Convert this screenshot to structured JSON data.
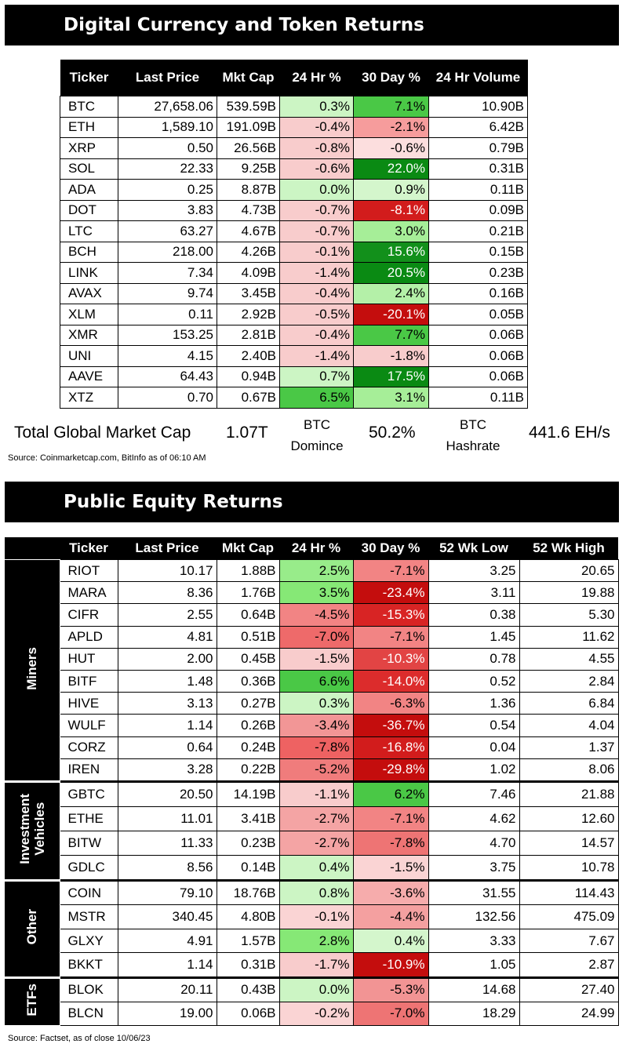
{
  "crypto": {
    "title": "Digital Currency and Token Returns",
    "headers": [
      "Ticker",
      "Last Price",
      "Mkt Cap",
      "24 Hr %",
      "30 Day %",
      "24 Hr Volume"
    ],
    "rows": [
      {
        "ticker": "BTC",
        "price": "27,658.06",
        "cap": "539.59B",
        "d24": "0.3%",
        "d24c": "#ccf5c4",
        "d30": "7.1%",
        "d30c": "#4ac846",
        "vol": "10.90B"
      },
      {
        "ticker": "ETH",
        "price": "1,589.10",
        "cap": "191.09B",
        "d24": "-0.4%",
        "d24c": "#f8cccc",
        "d30": "-2.1%",
        "d30c": "#f69c9c",
        "vol": "6.42B"
      },
      {
        "ticker": "XRP",
        "price": "0.50",
        "cap": "26.56B",
        "d24": "-0.8%",
        "d24c": "#f8cccc",
        "d30": "-0.6%",
        "d30c": "#fcdede",
        "vol": "0.79B"
      },
      {
        "ticker": "SOL",
        "price": "22.33",
        "cap": "9.25B",
        "d24": "-0.6%",
        "d24c": "#f8cccc",
        "d30": "22.0%",
        "d30c": "#0a8a13",
        "vol": "0.31B"
      },
      {
        "ticker": "ADA",
        "price": "0.25",
        "cap": "8.87B",
        "d24": "0.0%",
        "d24c": "#ccf5c4",
        "d30": "0.9%",
        "d30c": "#d4f6cc",
        "vol": "0.11B"
      },
      {
        "ticker": "DOT",
        "price": "3.83",
        "cap": "4.73B",
        "d24": "-0.7%",
        "d24c": "#f8cccc",
        "d30": "-8.1%",
        "d30c": "#d21c1c",
        "vol": "0.09B"
      },
      {
        "ticker": "LTC",
        "price": "63.27",
        "cap": "4.67B",
        "d24": "-0.7%",
        "d24c": "#f8cccc",
        "d30": "3.0%",
        "d30c": "#a6ee98",
        "vol": "0.21B"
      },
      {
        "ticker": "BCH",
        "price": "218.00",
        "cap": "4.26B",
        "d24": "-0.1%",
        "d24c": "#f8cccc",
        "d30": "15.6%",
        "d30c": "#12901b",
        "vol": "0.15B"
      },
      {
        "ticker": "LINK",
        "price": "7.34",
        "cap": "4.09B",
        "d24": "-1.4%",
        "d24c": "#f8cccc",
        "d30": "20.5%",
        "d30c": "#0a8a13",
        "vol": "0.23B"
      },
      {
        "ticker": "AVAX",
        "price": "9.74",
        "cap": "3.45B",
        "d24": "-0.4%",
        "d24c": "#f8cccc",
        "d30": "2.4%",
        "d30c": "#b4f0a8",
        "vol": "0.16B"
      },
      {
        "ticker": "XLM",
        "price": "0.11",
        "cap": "2.92B",
        "d24": "-0.5%",
        "d24c": "#f8cccc",
        "d30": "-20.1%",
        "d30c": "#c40d0d",
        "vol": "0.05B"
      },
      {
        "ticker": "XMR",
        "price": "153.25",
        "cap": "2.81B",
        "d24": "-0.4%",
        "d24c": "#f8cccc",
        "d30": "7.7%",
        "d30c": "#4ac846",
        "vol": "0.06B"
      },
      {
        "ticker": "UNI",
        "price": "4.15",
        "cap": "2.40B",
        "d24": "-1.4%",
        "d24c": "#f8cccc",
        "d30": "-1.8%",
        "d30c": "#f8cccc",
        "vol": "0.06B"
      },
      {
        "ticker": "AAVE",
        "price": "64.43",
        "cap": "0.94B",
        "d24": "0.7%",
        "d24c": "#ccf5c4",
        "d30": "17.5%",
        "d30c": "#0a8a13",
        "vol": "0.06B"
      },
      {
        "ticker": "XTZ",
        "price": "0.70",
        "cap": "0.67B",
        "d24": "6.5%",
        "d24c": "#4ac846",
        "d30": "3.1%",
        "d30c": "#a6ee98",
        "vol": "0.11B"
      }
    ],
    "summary": {
      "total_label": "Total Global Market Cap",
      "total_value": "1.07T",
      "dom_label1": "BTC",
      "dom_label2": "Domince",
      "dom_value": "50.2%",
      "hash_label1": "BTC",
      "hash_label2": "Hashrate",
      "hash_value": "441.6 EH/s"
    },
    "source": "Source: Coinmarketcap.com, BitInfo as of 06:10 AM"
  },
  "equity": {
    "title": "Public Equity Returns",
    "headers": [
      "Ticker",
      "Last Price",
      "Mkt Cap",
      "24 Hr %",
      "30 Day %",
      "52 Wk Low",
      "52 Wk High"
    ],
    "groups": [
      {
        "label": "Miners",
        "rowh": 27.2,
        "rows": [
          {
            "ticker": "RIOT",
            "price": "10.17",
            "cap": "1.88B",
            "d24": "2.5%",
            "d24c": "#98ec8a",
            "d30": "-7.1%",
            "d30c": "#f28484",
            "low": "3.25",
            "high": "20.65"
          },
          {
            "ticker": "MARA",
            "price": "8.36",
            "cap": "1.76B",
            "d24": "3.5%",
            "d24c": "#86e876",
            "d30": "-23.4%",
            "d30c": "#c40d0d",
            "low": "3.11",
            "high": "19.88"
          },
          {
            "ticker": "CIFR",
            "price": "2.55",
            "cap": "0.64B",
            "d24": "-4.5%",
            "d24c": "#f28484",
            "d30": "-15.3%",
            "d30c": "#d82424",
            "low": "0.38",
            "high": "5.30"
          },
          {
            "ticker": "APLD",
            "price": "4.81",
            "cap": "0.51B",
            "d24": "-7.0%",
            "d24c": "#ee6a6a",
            "d30": "-7.1%",
            "d30c": "#f28484",
            "low": "1.45",
            "high": "11.62"
          },
          {
            "ticker": "HUT",
            "price": "2.00",
            "cap": "0.45B",
            "d24": "-1.5%",
            "d24c": "#f8cccc",
            "d30": "-10.3%",
            "d30c": "#e24444",
            "low": "0.78",
            "high": "4.55"
          },
          {
            "ticker": "BITF",
            "price": "1.48",
            "cap": "0.36B",
            "d24": "6.6%",
            "d24c": "#4ac846",
            "d30": "-14.0%",
            "d30c": "#dc2c2c",
            "low": "0.52",
            "high": "2.84"
          },
          {
            "ticker": "HIVE",
            "price": "3.13",
            "cap": "0.27B",
            "d24": "0.3%",
            "d24c": "#ccf5c4",
            "d30": "-6.3%",
            "d30c": "#f28484",
            "low": "1.36",
            "high": "6.84"
          },
          {
            "ticker": "WULF",
            "price": "1.14",
            "cap": "0.26B",
            "d24": "-3.4%",
            "d24c": "#f29696",
            "d30": "-36.7%",
            "d30c": "#c40d0d",
            "low": "0.54",
            "high": "4.04"
          },
          {
            "ticker": "CORZ",
            "price": "0.64",
            "cap": "0.24B",
            "d24": "-7.8%",
            "d24c": "#ee6262",
            "d30": "-16.8%",
            "d30c": "#d21c1c",
            "low": "0.04",
            "high": "1.37"
          },
          {
            "ticker": "IREN",
            "price": "3.28",
            "cap": "0.22B",
            "d24": "-5.2%",
            "d24c": "#f07c7c",
            "d30": "-29.8%",
            "d30c": "#c40d0d",
            "low": "1.02",
            "high": "8.06"
          }
        ]
      },
      {
        "label": "Investment Vehicles",
        "label1": "Investment",
        "label2": "Vehicles",
        "rowh": 30,
        "rows": [
          {
            "ticker": "GBTC",
            "price": "20.50",
            "cap": "14.19B",
            "d24": "-1.1%",
            "d24c": "#f8cccc",
            "d30": "6.2%",
            "d30c": "#4ac846",
            "low": "7.46",
            "high": "21.88"
          },
          {
            "ticker": "ETHE",
            "price": "11.01",
            "cap": "3.41B",
            "d24": "-2.7%",
            "d24c": "#f4a4a4",
            "d30": "-7.1%",
            "d30c": "#f28484",
            "low": "4.62",
            "high": "12.60"
          },
          {
            "ticker": "BITW",
            "price": "11.33",
            "cap": "0.23B",
            "d24": "-2.7%",
            "d24c": "#f4a4a4",
            "d30": "-7.8%",
            "d30c": "#ee7474",
            "low": "4.70",
            "high": "14.57"
          },
          {
            "ticker": "GDLC",
            "price": "8.56",
            "cap": "0.14B",
            "d24": "0.4%",
            "d24c": "#ccf5c4",
            "d30": "-1.5%",
            "d30c": "#fad4d4",
            "low": "3.75",
            "high": "10.78"
          }
        ]
      },
      {
        "label": "Other",
        "rowh": 29.5,
        "rows": [
          {
            "ticker": "COIN",
            "price": "79.10",
            "cap": "18.76B",
            "d24": "0.8%",
            "d24c": "#ccf5c4",
            "d30": "-3.6%",
            "d30c": "#f6acac",
            "low": "31.55",
            "high": "114.43"
          },
          {
            "ticker": "MSTR",
            "price": "340.45",
            "cap": "4.80B",
            "d24": "-0.1%",
            "d24c": "#fad4d4",
            "d30": "-4.4%",
            "d30c": "#f4a0a0",
            "low": "132.56",
            "high": "475.09"
          },
          {
            "ticker": "GLXY",
            "price": "4.91",
            "cap": "1.57B",
            "d24": "2.8%",
            "d24c": "#86e876",
            "d30": "0.4%",
            "d30c": "#d4f6cc",
            "low": "3.33",
            "high": "7.67"
          },
          {
            "ticker": "BKKT",
            "price": "1.14",
            "cap": "0.31B",
            "d24": "-1.7%",
            "d24c": "#f8cccc",
            "d30": "-10.9%",
            "d30c": "#c40d0d",
            "low": "1.05",
            "high": "2.87"
          }
        ]
      },
      {
        "label": "ETFs",
        "rowh": 29,
        "rows": [
          {
            "ticker": "BLOK",
            "price": "20.11",
            "cap": "0.43B",
            "d24": "0.0%",
            "d24c": "#ccf5c4",
            "d30": "-5.3%",
            "d30c": "#f29494",
            "low": "14.68",
            "high": "27.40"
          },
          {
            "ticker": "BLCN",
            "price": "19.00",
            "cap": "0.06B",
            "d24": "-0.2%",
            "d24c": "#fad4d4",
            "d30": "-7.0%",
            "d30c": "#ee7474",
            "low": "18.29",
            "high": "24.99"
          }
        ]
      }
    ],
    "source": "Source: Factset, as of close 10/06/23"
  }
}
